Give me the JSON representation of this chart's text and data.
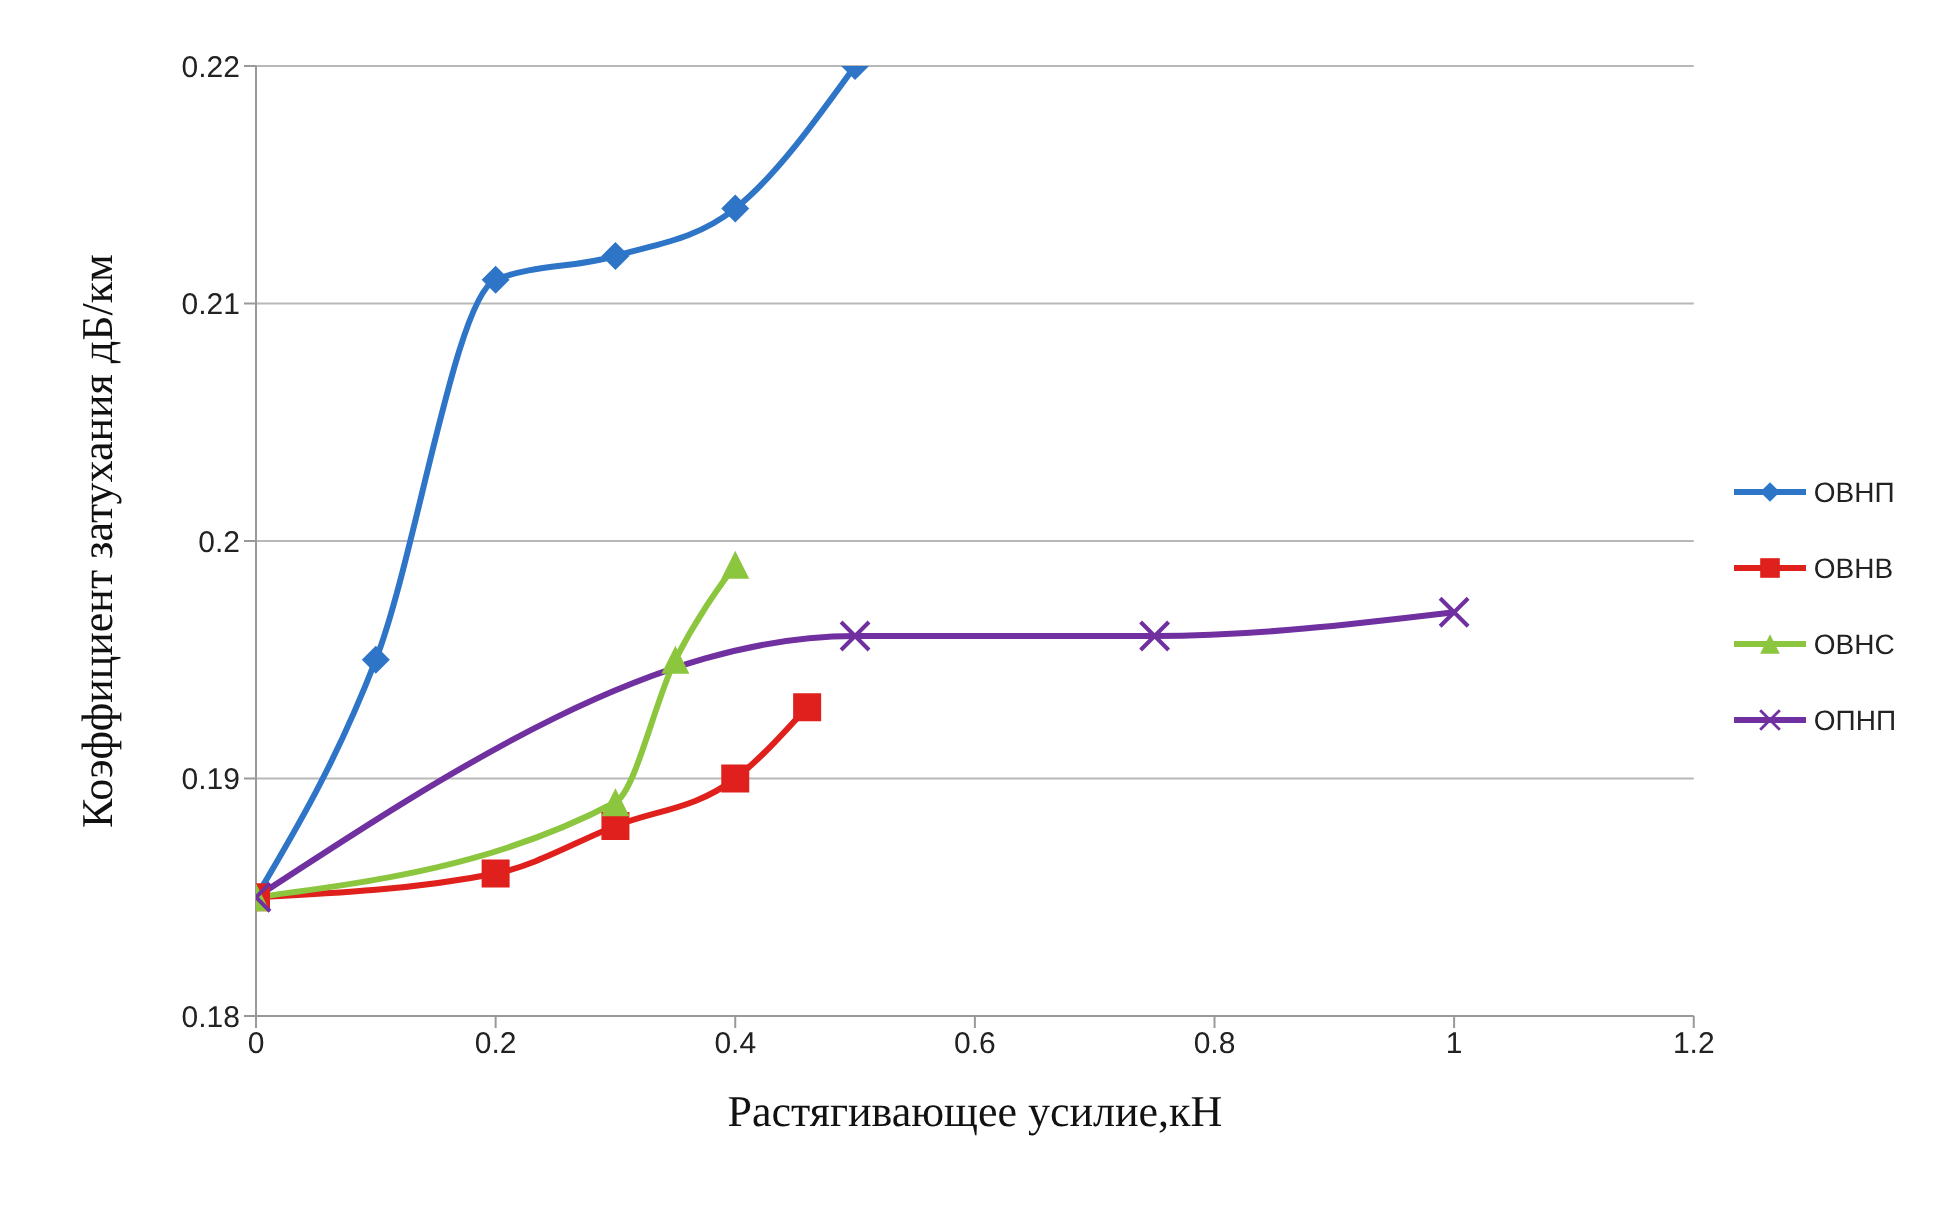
{
  "chart_data": {
    "type": "line",
    "xlabel": "Растягивающее усилие,кН",
    "ylabel": "Коэффициент затухания  дБ/км",
    "xlim": [
      0,
      1.2
    ],
    "xticks": [
      0,
      0.2,
      0.4,
      0.6,
      0.8,
      1,
      1.2
    ],
    "ylim": [
      0.18,
      0.22
    ],
    "yticks": [
      0.18,
      0.19,
      0.2,
      0.21,
      0.22
    ],
    "grid": "y",
    "legend": "right",
    "line_style": "solid",
    "series": [
      {
        "name": "ОВНП",
        "color": "#2e75c8",
        "marker": "diamond",
        "x": [
          0,
          0.1,
          0.2,
          0.3,
          0.4,
          0.5
        ],
        "values": [
          0.185,
          0.195,
          0.211,
          0.212,
          0.214,
          0.22
        ]
      },
      {
        "name": "ОВНВ",
        "color": "#e0201c",
        "marker": "square",
        "x": [
          0,
          0.2,
          0.3,
          0.4,
          0.46
        ],
        "values": [
          0.185,
          0.186,
          0.188,
          0.19,
          0.193
        ]
      },
      {
        "name": "ОВНС",
        "color": "#8cc63f",
        "marker": "triangle",
        "x": [
          0,
          0.3,
          0.35,
          0.4
        ],
        "values": [
          0.185,
          0.189,
          0.195,
          0.199
        ]
      },
      {
        "name": "ОПНП",
        "color": "#7030a0",
        "marker": "cross",
        "x": [
          0,
          0.5,
          0.75,
          1
        ],
        "values": [
          0.185,
          0.196,
          0.196,
          0.197
        ]
      }
    ]
  }
}
